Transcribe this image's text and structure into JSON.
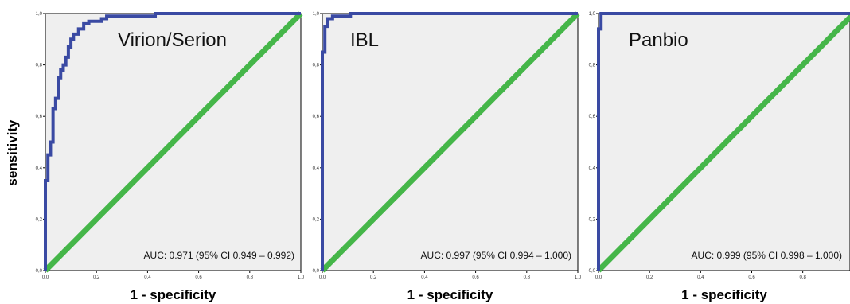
{
  "figure": {
    "ylabel": "sensitivity",
    "colors": {
      "roc": "#3a4aa3",
      "reference": "#45b649",
      "plot_bg": "#efefef",
      "frame": "#000000"
    }
  },
  "chart_data": [
    {
      "type": "line",
      "title": "Virion/Serion",
      "xlabel": "1 - specificity",
      "ylabel": "sensitivity",
      "xlim": [
        0,
        1
      ],
      "ylim": [
        0,
        1
      ],
      "x_ticks": [
        "0,0",
        "0,2",
        "0,4",
        "0,6",
        "0,8",
        "1,0"
      ],
      "y_ticks": [
        "0,0",
        "0,2",
        "0,4",
        "0,6",
        "0,8",
        "1,0"
      ],
      "annotation": "AUC: 0.971 (95% CI 0.949 – 0.992)",
      "series": [
        {
          "role": "roc",
          "points": [
            [
              0,
              0
            ],
            [
              0,
              0.35
            ],
            [
              0.01,
              0.35
            ],
            [
              0.01,
              0.45
            ],
            [
              0.02,
              0.45
            ],
            [
              0.02,
              0.5
            ],
            [
              0.03,
              0.5
            ],
            [
              0.03,
              0.63
            ],
            [
              0.04,
              0.63
            ],
            [
              0.04,
              0.67
            ],
            [
              0.05,
              0.67
            ],
            [
              0.05,
              0.75
            ],
            [
              0.06,
              0.75
            ],
            [
              0.06,
              0.78
            ],
            [
              0.07,
              0.78
            ],
            [
              0.07,
              0.8
            ],
            [
              0.08,
              0.8
            ],
            [
              0.08,
              0.83
            ],
            [
              0.09,
              0.83
            ],
            [
              0.09,
              0.87
            ],
            [
              0.1,
              0.87
            ],
            [
              0.1,
              0.9
            ],
            [
              0.11,
              0.9
            ],
            [
              0.11,
              0.92
            ],
            [
              0.13,
              0.92
            ],
            [
              0.13,
              0.94
            ],
            [
              0.15,
              0.94
            ],
            [
              0.15,
              0.96
            ],
            [
              0.17,
              0.96
            ],
            [
              0.17,
              0.97
            ],
            [
              0.22,
              0.97
            ],
            [
              0.22,
              0.98
            ],
            [
              0.24,
              0.98
            ],
            [
              0.24,
              0.99
            ],
            [
              0.43,
              0.99
            ],
            [
              0.43,
              1.0
            ],
            [
              1.0,
              1.0
            ]
          ]
        },
        {
          "role": "reference",
          "points": [
            [
              0,
              0
            ],
            [
              1,
              1
            ]
          ]
        }
      ]
    },
    {
      "type": "line",
      "title": "IBL",
      "xlabel": "1 - specificity",
      "ylabel": "",
      "xlim": [
        0,
        1
      ],
      "ylim": [
        0,
        1
      ],
      "x_ticks": [
        "0,0",
        "0,2",
        "0,4",
        "0,6",
        "0,8",
        "1,0"
      ],
      "y_ticks": [
        "0,0",
        "0,2",
        "0,4",
        "0,6",
        "0,8",
        "1,0"
      ],
      "annotation": "AUC: 0.997 (95% CI 0.994 – 1.000)",
      "series": [
        {
          "role": "roc",
          "points": [
            [
              0,
              0
            ],
            [
              0,
              0.85
            ],
            [
              0.01,
              0.85
            ],
            [
              0.01,
              0.95
            ],
            [
              0.02,
              0.95
            ],
            [
              0.02,
              0.98
            ],
            [
              0.04,
              0.98
            ],
            [
              0.04,
              0.99
            ],
            [
              0.11,
              0.99
            ],
            [
              0.11,
              1.0
            ],
            [
              1.0,
              1.0
            ]
          ]
        },
        {
          "role": "reference",
          "points": [
            [
              0,
              0
            ],
            [
              1,
              1
            ]
          ]
        }
      ]
    },
    {
      "type": "line",
      "title": "Panbio",
      "xlabel": "1 - specificity",
      "ylabel": "",
      "xlim": [
        0,
        1
      ],
      "ylim": [
        0,
        1
      ],
      "x_ticks": [
        "0,0",
        "0,2",
        "0,4",
        "0,6",
        "0,8"
      ],
      "y_ticks": [
        "0,0",
        "0,2",
        "0,4",
        "0,6",
        "0,8",
        "1,0"
      ],
      "annotation": "AUC: 0.999 (95% CI 0.998 – 1.000)",
      "series": [
        {
          "role": "roc",
          "points": [
            [
              0,
              0
            ],
            [
              0,
              0.94
            ],
            [
              0.01,
              0.94
            ],
            [
              0.01,
              1.0
            ],
            [
              1.0,
              1.0
            ]
          ]
        },
        {
          "role": "reference",
          "points": [
            [
              0,
              0
            ],
            [
              1,
              1
            ]
          ]
        }
      ]
    }
  ]
}
